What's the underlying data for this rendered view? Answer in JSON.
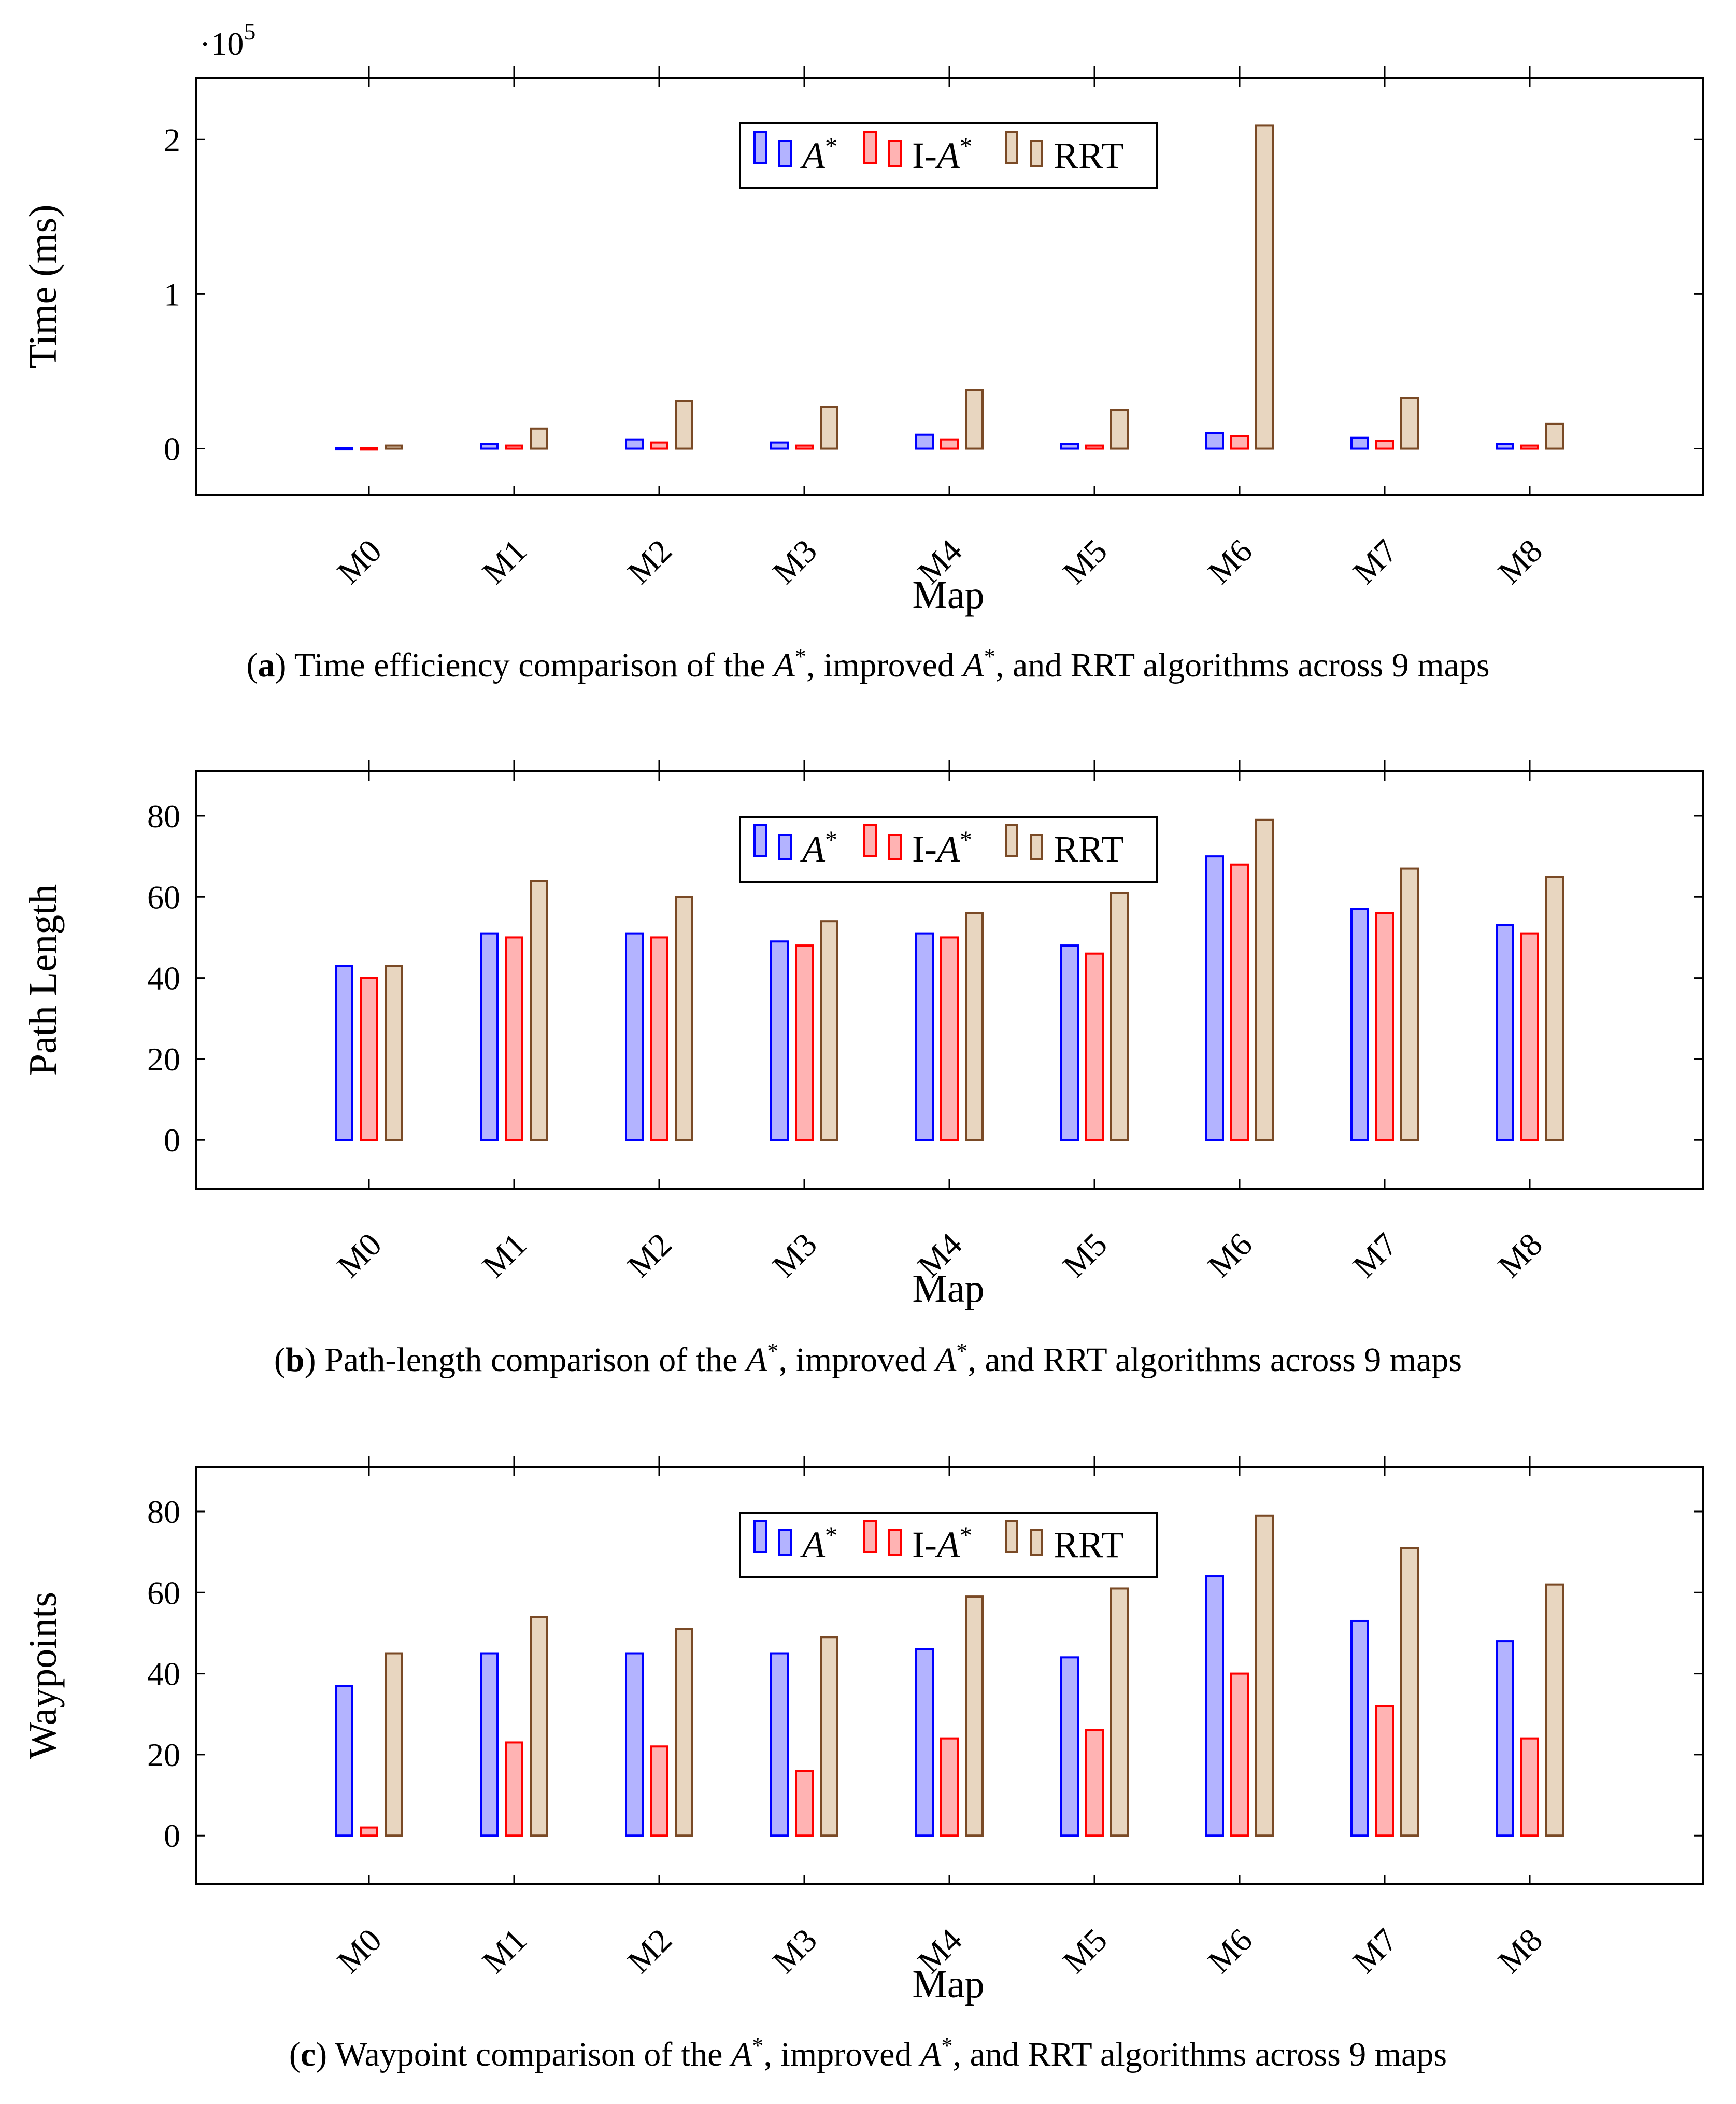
{
  "colors": {
    "astar_fill": "#b3b3ff",
    "astar_stroke": "#0000ff",
    "iastar_fill": "#ffb3b3",
    "iastar_stroke": "#ff0000",
    "rrt_fill": "#e8d6c0",
    "rrt_stroke": "#7a4a26"
  },
  "chart_data": [
    {
      "type": "bar",
      "title": "",
      "xlabel": "Map",
      "ylabel": "Time (ms)",
      "scale_label_prefix": "·10",
      "scale_label_exponent": "5",
      "categories": [
        "M0",
        "M1",
        "M2",
        "M3",
        "M4",
        "M5",
        "M6",
        "M7",
        "M8"
      ],
      "yticks": [
        0,
        1,
        2
      ],
      "ylim": [
        -0.3,
        2.4
      ],
      "legend_position": "top-center",
      "series": [
        {
          "name": "A*",
          "values": [
            0.005,
            0.03,
            0.06,
            0.04,
            0.09,
            0.03,
            0.1,
            0.07,
            0.03
          ]
        },
        {
          "name": "I-A*",
          "values": [
            0.004,
            0.02,
            0.04,
            0.02,
            0.06,
            0.02,
            0.08,
            0.05,
            0.02
          ]
        },
        {
          "name": "RRT",
          "values": [
            0.02,
            0.13,
            0.31,
            0.27,
            0.38,
            0.25,
            2.09,
            0.33,
            0.16
          ]
        }
      ],
      "caption": {
        "letter": "a",
        "text": "Time efficiency comparison of the A*, improved A*, and RRT algorithms across 9 maps"
      }
    },
    {
      "type": "bar",
      "title": "",
      "xlabel": "Map",
      "ylabel": "Path Length",
      "categories": [
        "M0",
        "M1",
        "M2",
        "M3",
        "M4",
        "M5",
        "M6",
        "M7",
        "M8"
      ],
      "yticks": [
        0,
        20,
        40,
        60,
        80
      ],
      "ylim": [
        -12,
        91
      ],
      "legend_position": "top-center",
      "series": [
        {
          "name": "A*",
          "values": [
            43,
            51,
            51,
            49,
            51,
            48,
            70,
            57,
            53
          ]
        },
        {
          "name": "I-A*",
          "values": [
            40,
            50,
            50,
            48,
            50,
            46,
            68,
            56,
            51
          ]
        },
        {
          "name": "RRT",
          "values": [
            43,
            64,
            60,
            54,
            56,
            61,
            79,
            67,
            65
          ]
        }
      ],
      "caption": {
        "letter": "b",
        "text": "Path-length comparison of the A*, improved A*, and RRT algorithms across 9 maps"
      }
    },
    {
      "type": "bar",
      "title": "",
      "xlabel": "Map",
      "ylabel": "Waypoints",
      "categories": [
        "M0",
        "M1",
        "M2",
        "M3",
        "M4",
        "M5",
        "M6",
        "M7",
        "M8"
      ],
      "yticks": [
        0,
        20,
        40,
        60,
        80
      ],
      "ylim": [
        -12,
        91
      ],
      "legend_position": "top-center",
      "series": [
        {
          "name": "A*",
          "values": [
            37,
            45,
            45,
            45,
            46,
            44,
            64,
            53,
            48
          ]
        },
        {
          "name": "I-A*",
          "values": [
            2,
            23,
            22,
            16,
            24,
            26,
            40,
            32,
            24
          ]
        },
        {
          "name": "RRT",
          "values": [
            45,
            54,
            51,
            49,
            59,
            61,
            79,
            71,
            62
          ]
        }
      ],
      "caption": {
        "letter": "c",
        "text": "Waypoint comparison of the A*, improved A*, and RRT algorithms across 9 maps"
      }
    }
  ]
}
